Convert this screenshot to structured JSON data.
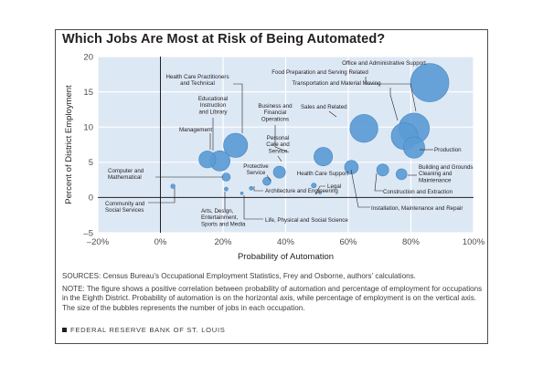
{
  "chart_data": {
    "type": "scatter",
    "title": "Which Jobs Are Most at Risk of Being Automated?",
    "xlabel": "Probability of Automation",
    "ylabel": "Percent of District Employment",
    "xlim": [
      -20,
      100
    ],
    "ylim": [
      -5,
      20
    ],
    "x_ticks": [
      -20,
      0,
      20,
      40,
      60,
      80,
      100
    ],
    "x_tick_labels": [
      "–20%",
      "0%",
      "20%",
      "40%",
      "60%",
      "80%",
      "100%"
    ],
    "y_ticks": [
      -5,
      0,
      5,
      10,
      15,
      20
    ],
    "y_tick_labels": [
      "–5",
      "0",
      "5",
      "10",
      "15",
      "20"
    ],
    "grid": true,
    "bubble_size": "number of jobs in each occupation",
    "points": [
      {
        "label": "Office and Administrative Support",
        "x": 86,
        "y": 16.3,
        "size": 7
      },
      {
        "label": "Food Preparation and Serving Related",
        "x": 81,
        "y": 9.8,
        "size": 5.6
      },
      {
        "label": "Transportation and Material Moving",
        "x": 78,
        "y": 8.7,
        "size": 4.9
      },
      {
        "label": "Production",
        "x": 81,
        "y": 7.1,
        "size": 3.9
      },
      {
        "label": "Sales and Related",
        "x": 65,
        "y": 9.8,
        "size": 5.1
      },
      {
        "label": "Health Care Practitioners and Technical",
        "x": 24,
        "y": 7.4,
        "size": 4.4
      },
      {
        "label": "Educational Instruction and Library",
        "x": 19,
        "y": 5.2,
        "size": 3.7
      },
      {
        "label": "Management",
        "x": 15,
        "y": 5.4,
        "size": 3.1
      },
      {
        "label": "Business and Financial Operations",
        "x": 52,
        "y": 5.8,
        "size": 3.4
      },
      {
        "label": "Personal Care and Service",
        "x": 38,
        "y": 3.6,
        "size": 2.2
      },
      {
        "label": "Protective Service",
        "x": 34,
        "y": 2.3,
        "size": 1.5
      },
      {
        "label": "Health Care Support",
        "x": 49,
        "y": 1.7,
        "size": 0.9
      },
      {
        "label": "Legal",
        "x": 51,
        "y": 0.7,
        "size": 0.5
      },
      {
        "label": "Installation, Maintenance and Repair",
        "x": 61,
        "y": 4.3,
        "size": 2.5
      },
      {
        "label": "Construction and Extraction",
        "x": 71,
        "y": 3.9,
        "size": 2.2
      },
      {
        "label": "Building and Grounds Cleaning and Maintenance",
        "x": 77,
        "y": 3.3,
        "size": 2.0
      },
      {
        "label": "Computer and Mathematical",
        "x": 21,
        "y": 2.9,
        "size": 1.5
      },
      {
        "label": "Community and Social Services",
        "x": 4,
        "y": 1.6,
        "size": 0.8
      },
      {
        "label": "Arts, Design, Entertainment, Sports and Media",
        "x": 21,
        "y": 1.2,
        "size": 0.7
      },
      {
        "label": "Architecture and Engineering",
        "x": 29,
        "y": 1.3,
        "size": 0.7
      },
      {
        "label": "Life, Physical and Social Science",
        "x": 26,
        "y": 0.6,
        "size": 0.5
      }
    ]
  },
  "notes": {
    "sources": "SOURCES: Census Bureau’s Occupational Employment Statistics, Frey and Osborne, authors’ calculations.",
    "note": "NOTE: The figure shows a positive correlation between probability of automation and percentage of employment for occupations in the Eighth District. Probability of automation is on the horizontal axis, while percentage of employment is on the vertical axis. The size of the bubbles represents the number of jobs in each occupation."
  },
  "footer": {
    "text": "FEDERAL RESERVE BANK OF ST. LOUIS"
  },
  "colors": {
    "plot_background": "#dde8f5",
    "bubble": "#5b9bd5",
    "bubble_stroke": "#4a86c0",
    "leader_line": "#231f20",
    "axis_zero_line": "#231f20",
    "gridline": "#ffffff"
  }
}
